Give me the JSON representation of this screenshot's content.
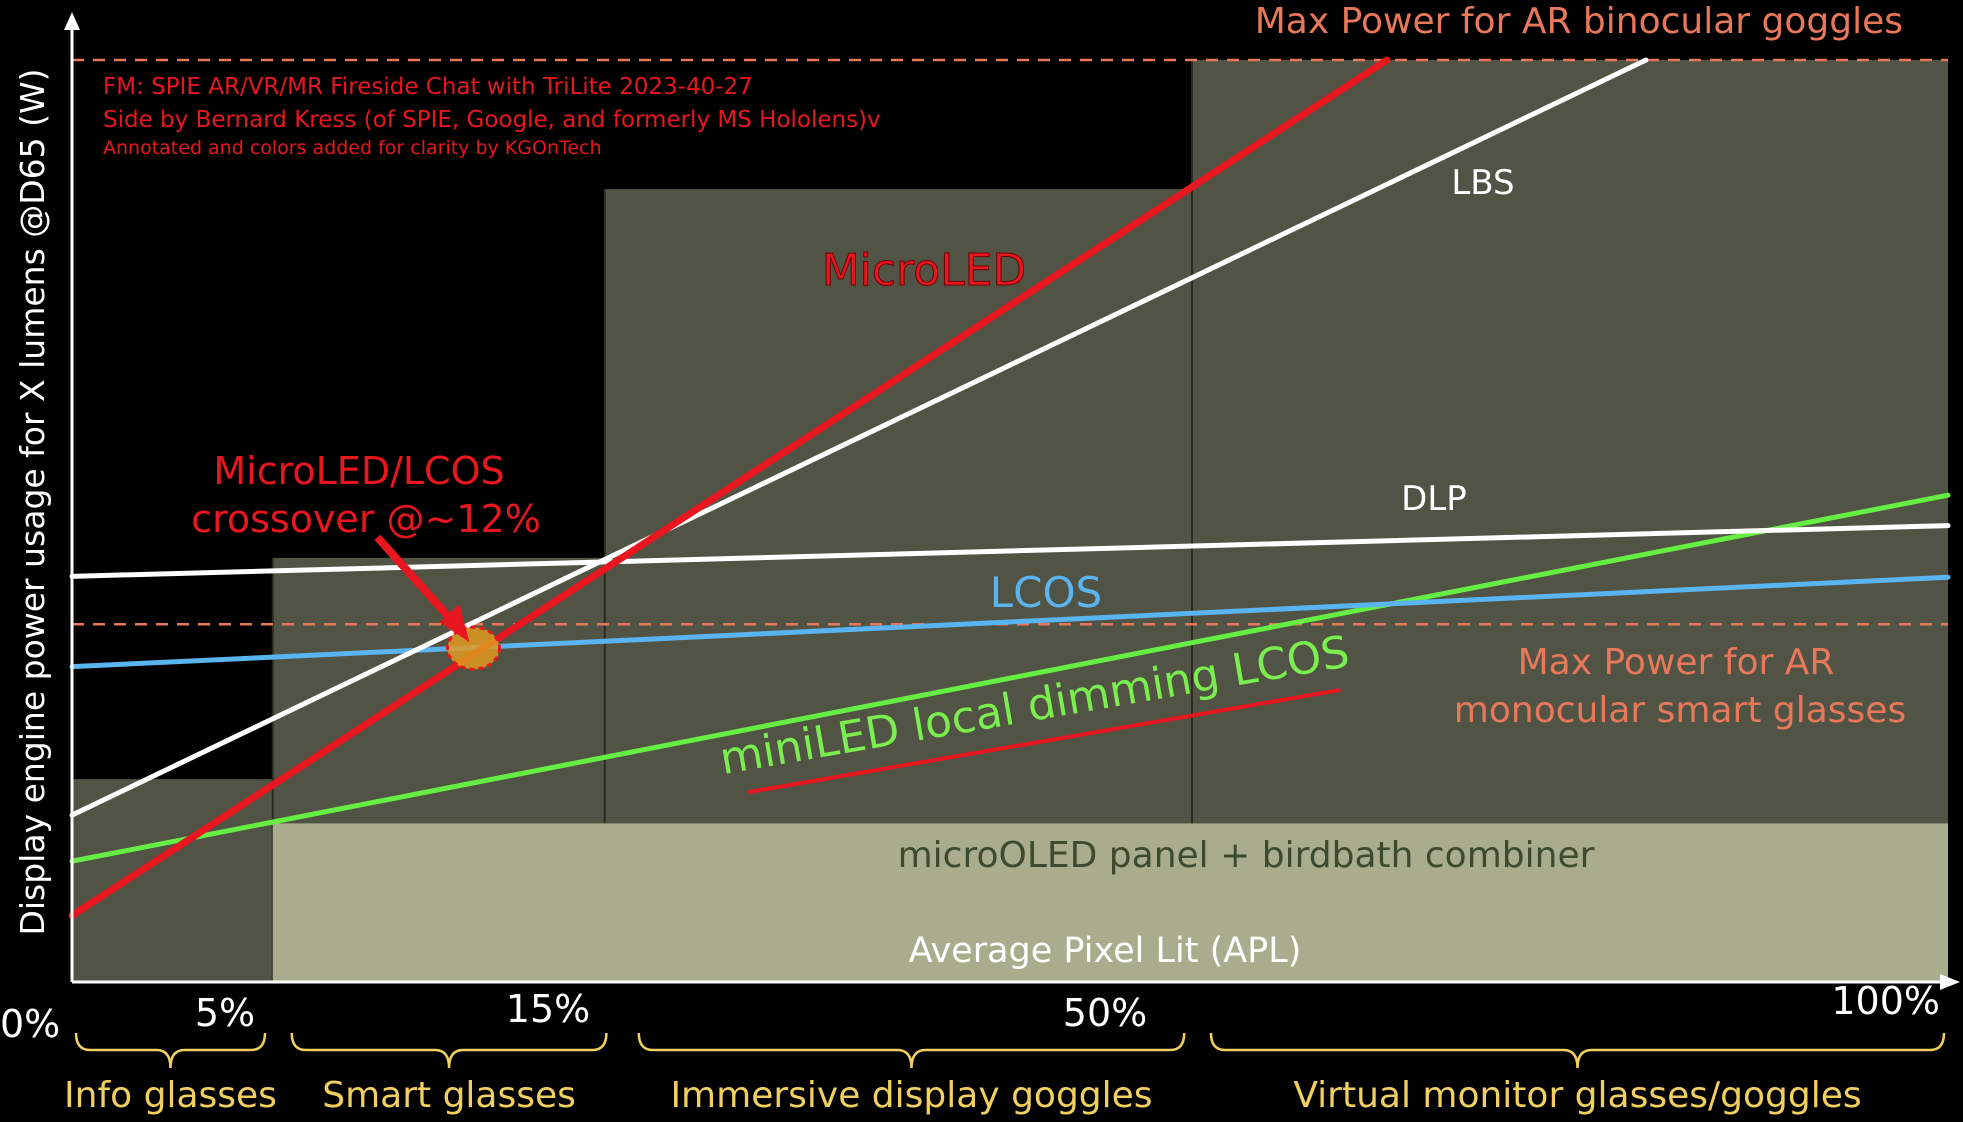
{
  "chart_data": {
    "type": "line",
    "ylabel": "Display engine power usage for X lumens @D65 (W)",
    "xlabel": "Average Pixel Lit (APL)",
    "x_tick_labels": [
      {
        "x": 0,
        "label": "0%"
      },
      {
        "x": 5,
        "label": "5%"
      },
      {
        "x": 15,
        "label": "15%"
      },
      {
        "x": 50,
        "label": "50%"
      },
      {
        "x": 100,
        "label": "100%"
      }
    ],
    "credits": [
      "FM: SPIE AR/VR/MR Fireside Chat with TriLite 2023-40-27",
      "Side by Bernard Kress (of SPIE, Google, and formerly MS Hololens)v",
      "Annotated and colors added for clarity by KGOnTech"
    ],
    "series": [
      {
        "name": "MicroLED",
        "color": "#e8161e",
        "x": [
          0,
          70.1
        ],
        "y": [
          7.2,
          100
        ]
      },
      {
        "name": "LBS",
        "color": "#ffffff",
        "x": [
          0,
          83.9
        ],
        "y": [
          18.1,
          100
        ]
      },
      {
        "name": "DLP",
        "color": "#ffffff",
        "x": [
          0,
          100
        ],
        "y": [
          44.0,
          49.5
        ]
      },
      {
        "name": "LCOS",
        "color": "#5ab4f0",
        "x": [
          0,
          100
        ],
        "y": [
          34.2,
          43.9
        ]
      },
      {
        "name": "miniLED local dimming LCOS",
        "color": "#66ee44",
        "x": [
          0,
          100
        ],
        "y": [
          13.1,
          52.8
        ]
      }
    ],
    "reference_lines": [
      {
        "label": "Max Power for AR binocular goggles",
        "y": 100,
        "color": "#e8785a"
      },
      {
        "label_lines": [
          "Max Power for AR",
          "monocular smart glasses"
        ],
        "y": 38.8,
        "color": "#e8785a"
      }
    ],
    "regions": [
      {
        "x": [
          0,
          10.7
        ],
        "y": [
          0,
          22
        ]
      },
      {
        "x": [
          10.7,
          28.4
        ],
        "y": [
          0,
          46
        ]
      },
      {
        "x": [
          28.4,
          59.7
        ],
        "y": [
          0,
          86
        ]
      },
      {
        "x": [
          59.7,
          100
        ],
        "y": [
          0,
          100
        ]
      }
    ],
    "microoled_region": {
      "label": "microOLED panel + birdbath combiner",
      "y": 17.2
    },
    "annotation": {
      "lines": [
        "MicroLED/LCOS",
        "crossover @~12%"
      ],
      "x": 21.4,
      "y": 36.2
    },
    "categories": [
      {
        "label": "Info glasses",
        "from": 0,
        "to": 10.5
      },
      {
        "label": "Smart glasses",
        "from": 11.5,
        "to": 28.7
      },
      {
        "label": "Immersive display goggles",
        "from": 30.0,
        "to": 59.5
      },
      {
        "label": "Virtual monitor glasses/goggles",
        "from": 60.5,
        "to": 100
      }
    ],
    "xlim": [
      0,
      100
    ],
    "ylim": [
      0,
      100
    ],
    "grid": false,
    "legend": "none"
  }
}
